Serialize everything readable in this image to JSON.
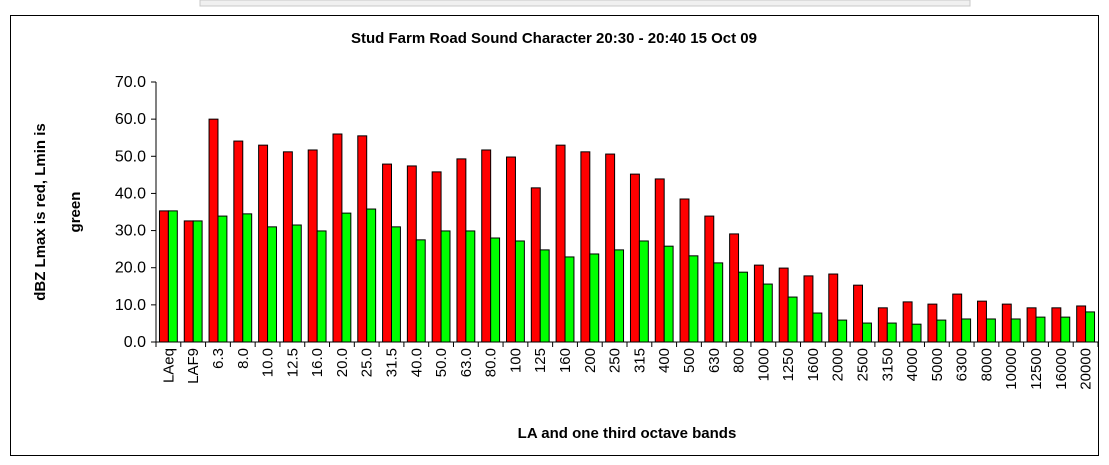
{
  "chart_data": {
    "type": "bar",
    "title": "Stud Farm Road Sound Character 20:30 - 20:40 15 Oct 09",
    "ylabel": [
      "dBZ Lmax is red, Lmin is",
      "green"
    ],
    "xlabel": "LA and one third octave bands",
    "categories": [
      "LAeq",
      "LAF9",
      "6.3",
      "8.0",
      "10.0",
      "12.5",
      "16.0",
      "20.0",
      "25.0",
      "31.5",
      "40.0",
      "50.0",
      "63.0",
      "80.0",
      "100",
      "125",
      "160",
      "200",
      "250",
      "315",
      "400",
      "500",
      "630",
      "800",
      "1000",
      "1250",
      "1600",
      "2000",
      "2500",
      "3150",
      "4000",
      "5000",
      "6300",
      "8000",
      "10000",
      "12500",
      "16000",
      "20000"
    ],
    "series": [
      {
        "color": "#ff0000",
        "values": [
          35.3,
          32.6,
          60.0,
          54.1,
          53.0,
          51.2,
          51.7,
          56.0,
          55.5,
          47.9,
          47.4,
          45.8,
          49.3,
          51.7,
          49.8,
          41.5,
          53.0,
          51.2,
          50.6,
          45.2,
          43.9,
          38.5,
          33.9,
          29.1,
          20.7,
          19.9,
          17.8,
          18.3,
          15.3,
          9.2,
          10.8,
          10.2,
          12.9,
          11.0,
          10.2,
          9.2,
          9.2,
          9.7
        ]
      },
      {
        "color": "#00ff00",
        "values": [
          35.3,
          32.6,
          33.9,
          34.5,
          31.0,
          31.5,
          29.9,
          34.7,
          35.8,
          31.0,
          27.5,
          29.9,
          29.9,
          28.0,
          27.2,
          24.8,
          22.9,
          23.7,
          24.8,
          27.2,
          25.8,
          23.2,
          21.3,
          18.8,
          15.6,
          12.1,
          7.8,
          5.9,
          5.1,
          5.1,
          4.8,
          5.9,
          6.2,
          6.2,
          6.2,
          6.7,
          6.7,
          8.1
        ]
      }
    ],
    "ylim": [
      0,
      70
    ],
    "yticks": [
      {
        "value": 0,
        "label": "0.0"
      },
      {
        "value": 10,
        "label": "10.0"
      },
      {
        "value": 20,
        "label": "20.0"
      },
      {
        "value": 30,
        "label": "30.0"
      },
      {
        "value": 40,
        "label": "40.0"
      },
      {
        "value": 50,
        "label": "50.0"
      },
      {
        "value": 60,
        "label": "60.0"
      },
      {
        "value": 70,
        "label": "70.0"
      }
    ],
    "grid": false
  }
}
